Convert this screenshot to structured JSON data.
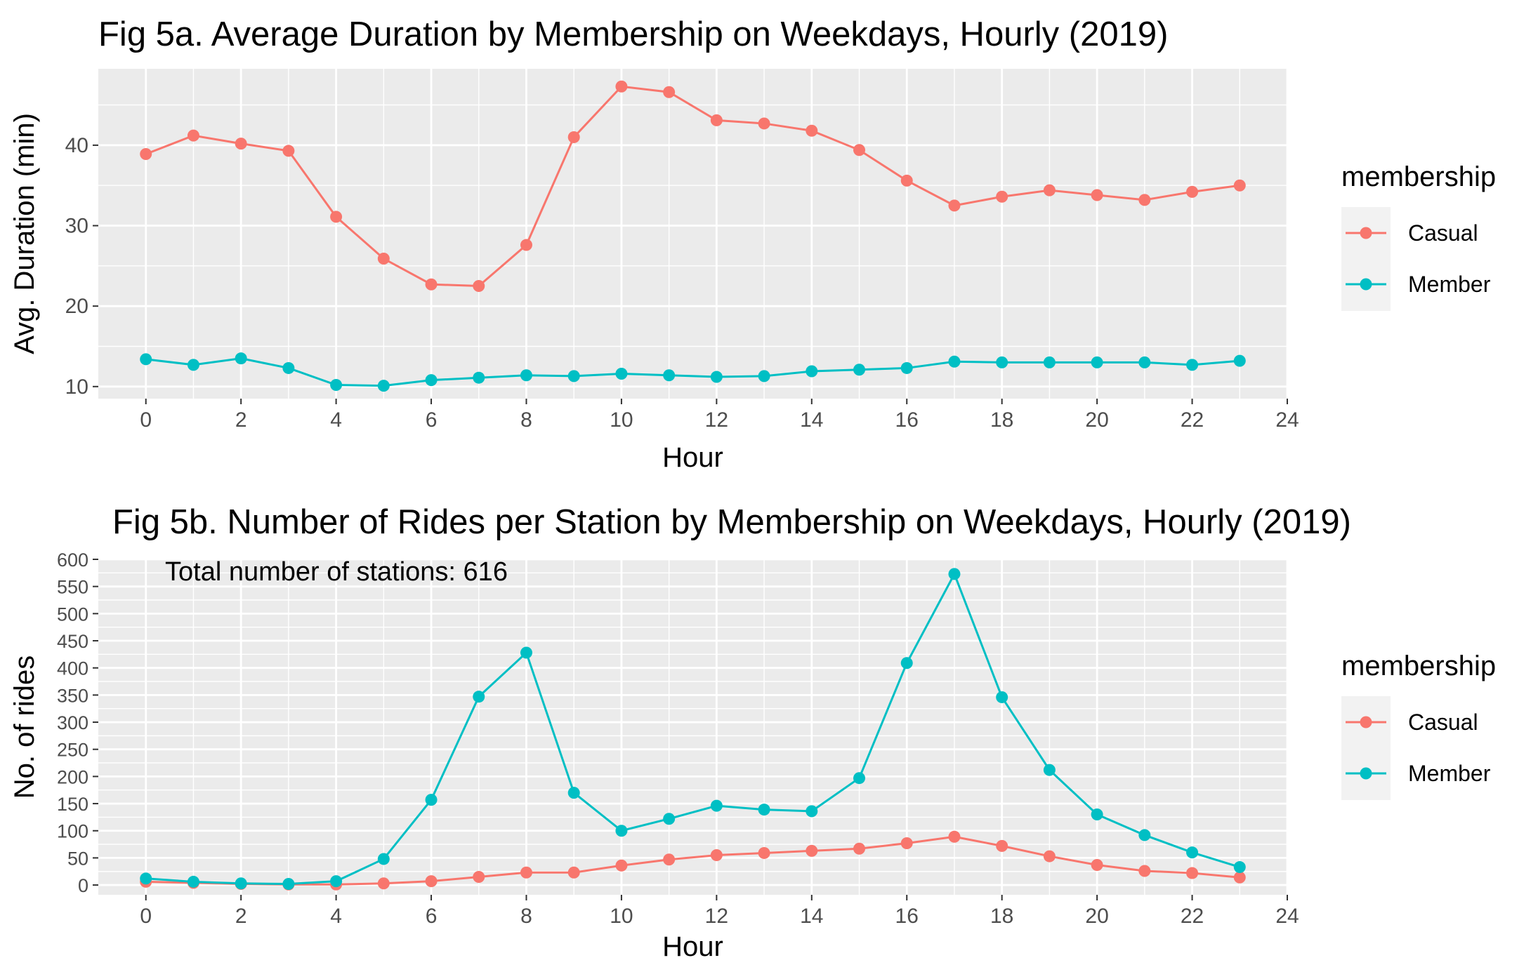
{
  "chart_data": [
    {
      "type": "line",
      "title": "Fig 5a. Average Duration by Membership on Weekdays, Hourly (2019)",
      "xlabel": "Hour",
      "ylabel": "Avg. Duration (min)",
      "xlim": [
        -1,
        24
      ],
      "ylim": [
        8.5,
        49.5
      ],
      "x_ticks": [
        0,
        2,
        4,
        6,
        8,
        10,
        12,
        14,
        16,
        18,
        20,
        22,
        24
      ],
      "y_ticks": [
        10,
        20,
        30,
        40
      ],
      "grid": true,
      "legend_title": "membership",
      "legend_position": "right",
      "x": [
        0,
        1,
        2,
        3,
        4,
        5,
        6,
        7,
        8,
        9,
        10,
        11,
        12,
        13,
        14,
        15,
        16,
        17,
        18,
        19,
        20,
        21,
        22,
        23
      ],
      "series": [
        {
          "name": "Casual",
          "color": "#F8766D",
          "values": [
            38.9,
            41.2,
            40.2,
            39.3,
            31.1,
            25.9,
            22.7,
            22.5,
            27.6,
            41.0,
            47.3,
            46.6,
            43.1,
            42.7,
            41.8,
            39.4,
            35.6,
            32.5,
            33.6,
            34.4,
            33.8,
            33.2,
            34.2,
            35.0
          ]
        },
        {
          "name": "Member",
          "color": "#00BFC4",
          "values": [
            13.4,
            12.7,
            13.5,
            12.3,
            10.2,
            10.1,
            10.8,
            11.1,
            11.4,
            11.3,
            11.6,
            11.4,
            11.2,
            11.3,
            11.9,
            12.1,
            12.3,
            13.1,
            13.0,
            13.0,
            13.0,
            13.0,
            12.7,
            13.2
          ]
        }
      ]
    },
    {
      "type": "line",
      "title": "Fig 5b. Number of Rides per Station by Membership on Weekdays, Hourly (2019)",
      "xlabel": "Hour",
      "ylabel": "No. of rides",
      "xlim": [
        -1,
        24
      ],
      "ylim": [
        -18,
        600
      ],
      "x_ticks": [
        0,
        2,
        4,
        6,
        8,
        10,
        12,
        14,
        16,
        18,
        20,
        22,
        24
      ],
      "y_ticks": [
        0,
        50,
        100,
        150,
        200,
        250,
        300,
        350,
        400,
        450,
        500,
        550,
        600
      ],
      "grid": true,
      "legend_title": "membership",
      "legend_position": "right",
      "annotation": "Total number of stations: 616",
      "x": [
        0,
        1,
        2,
        3,
        4,
        5,
        6,
        7,
        8,
        9,
        10,
        11,
        12,
        13,
        14,
        15,
        16,
        17,
        18,
        19,
        20,
        21,
        22,
        23
      ],
      "series": [
        {
          "name": "Casual",
          "color": "#F8766D",
          "values": [
            6,
            4,
            2,
            1,
            1,
            3,
            7,
            15,
            23,
            23,
            36,
            47,
            55,
            59,
            63,
            67,
            77,
            89,
            72,
            53,
            37,
            26,
            22,
            14
          ]
        },
        {
          "name": "Member",
          "color": "#00BFC4",
          "values": [
            12,
            6,
            3,
            2,
            7,
            48,
            157,
            347,
            428,
            170,
            100,
            122,
            146,
            139,
            136,
            197,
            409,
            573,
            346,
            212,
            130,
            92,
            60,
            33
          ]
        }
      ]
    }
  ]
}
